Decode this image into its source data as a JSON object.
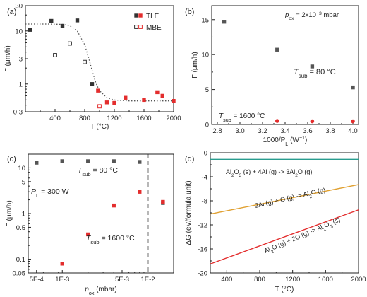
{
  "chart_data": [
    {
      "panel": "(a)",
      "type": "scatter",
      "xlabel": "T (°C)",
      "ylabel": "Γ (μm/h)",
      "xlim": [
        0,
        2000
      ],
      "ylim": [
        0.3,
        30
      ],
      "yscale": "log",
      "xticks": [
        "400",
        "800",
        "1200",
        "1600",
        "2000"
      ],
      "yticks": [
        "0.3",
        "1",
        "3",
        "10",
        "30"
      ],
      "legend_position": "top-right",
      "series": [
        {
          "name": "TLE",
          "marker": "filled-square",
          "color_low": "#333333",
          "color_high": "#e32d2d",
          "x": [
            60,
            350,
            500,
            700,
            900,
            980,
            1100,
            1200,
            1350,
            1600,
            1780,
            1850,
            2000
          ],
          "y": [
            10.5,
            15.5,
            12.5,
            15.8,
            1.0,
            0.75,
            0.45,
            0.44,
            0.55,
            0.5,
            0.7,
            0.6,
            0.48
          ]
        },
        {
          "name": "MBE",
          "marker": "open-square",
          "color_low": "#333333",
          "color_high": "#e32d2d",
          "x": [
            400,
            600,
            800,
            1000
          ],
          "y": [
            3.5,
            5.8,
            2.6,
            0.38
          ]
        }
      ],
      "fit_curve": {
        "style": "dotted",
        "color": "#555555",
        "x": [
          0,
          300,
          500,
          600,
          700,
          800,
          850,
          900,
          950,
          1000,
          1100,
          1200,
          1400,
          1700,
          2000
        ],
        "y": [
          13.5,
          13.5,
          13.3,
          12.5,
          10,
          5.5,
          3.2,
          1.8,
          1.05,
          0.75,
          0.55,
          0.5,
          0.48,
          0.48,
          0.48
        ]
      }
    },
    {
      "panel": "(b)",
      "type": "scatter",
      "xlabel": "1000/P",
      "xlabel_sub": "L",
      "xlabel_unit": " (W",
      "xlabel_sup": "−1",
      "xlabel_end": ")",
      "ylabel": "Γ (μm/h)",
      "xlim": [
        2.75,
        4.05
      ],
      "ylim": [
        0,
        17
      ],
      "xticks": [
        "2.8",
        "3.0",
        "3.2",
        "3.4",
        "3.6",
        "3.8",
        "4.0"
      ],
      "yticks": [
        "0",
        "5",
        "10",
        "15"
      ],
      "annotation_pressure": {
        "text_pre": "p",
        "sub": "ox",
        "text_post": " = 2x10",
        "sup": "−3",
        "text_end": " mbar"
      },
      "annotation_black": {
        "text_pre": "T",
        "sub": "sub",
        "text_post": " = 80 °C",
        "color": "#222222"
      },
      "annotation_red": {
        "text_pre": "T",
        "sub": "sub",
        "text_post": " = 1600 °C",
        "color": "#e32d2d"
      },
      "series": [
        {
          "name": "T_sub = 80 °C",
          "color": "#555555",
          "marker": "square",
          "x": [
            2.86,
            3.33,
            3.64,
            4.0
          ],
          "y": [
            14.7,
            10.7,
            8.3,
            5.3
          ]
        },
        {
          "name": "T_sub = 1600 °C",
          "color": "#e32d2d",
          "marker": "circle",
          "x": [
            3.33,
            3.64,
            4.0
          ],
          "y": [
            0.5,
            0.45,
            0.45
          ]
        }
      ]
    },
    {
      "panel": "(c)",
      "type": "scatter",
      "xlabel": "p",
      "xlabel_sub": "ox",
      "xlabel_unit": " (mbar)",
      "ylabel": "Γ (μm/h)",
      "xscale": "log",
      "yscale": "log",
      "xlim": [
        0.0004,
        0.02
      ],
      "ylim": [
        0.05,
        20
      ],
      "xticks": [
        "5E-4",
        "1E-3",
        "5E-3",
        "1E-2"
      ],
      "yticks": [
        "0.05",
        "0.1",
        "0.5",
        "1",
        "5",
        "10"
      ],
      "annotation_power": {
        "text_pre": "P",
        "sub": "L",
        "text_post": " = 300 W"
      },
      "annotation_black": {
        "text_pre": "T",
        "sub": "sub",
        "text_post": " = 80 °C",
        "color": "#222222"
      },
      "annotation_red": {
        "text_pre": "T",
        "sub": "sub",
        "text_post": " = 1600 °C",
        "color": "#e32d2d"
      },
      "vline": {
        "x": 0.01,
        "style": "dashed"
      },
      "series": [
        {
          "name": "T_sub = 80 °C",
          "color": "#555555",
          "marker": "square",
          "x": [
            0.0005,
            0.001,
            0.002,
            0.004,
            0.008,
            0.015
          ],
          "y": [
            13,
            14,
            14,
            14,
            13.5,
            1.7
          ]
        },
        {
          "name": "T_sub = 1600 °C",
          "color": "#e32d2d",
          "marker": "square",
          "x": [
            0.001,
            0.002,
            0.004,
            0.008,
            0.015
          ],
          "y": [
            0.08,
            0.35,
            1.5,
            3,
            1.8
          ]
        }
      ]
    },
    {
      "panel": "(d)",
      "type": "line",
      "xlabel": "T (°C)",
      "ylabel": "ΔG (eV/formula unit)",
      "xlim": [
        200,
        2000
      ],
      "ylim": [
        -20,
        0
      ],
      "xticks": [
        "400",
        "800",
        "1200",
        "1600",
        "2000"
      ],
      "yticks": [
        "0",
        "-4",
        "-8",
        "-12",
        "-16",
        "-20"
      ],
      "series": [
        {
          "name": "Al2O3 (s) + 4Al (g) -> 3Al2O (g)",
          "color": "#2a9d8f",
          "label_parts": [
            "Al",
            "2",
            "O",
            "3",
            " (s) + 4Al (g) -> 3Al",
            "2",
            "O (g)"
          ],
          "x": [
            200,
            2000
          ],
          "y": [
            -1.1,
            -1.1
          ]
        },
        {
          "name": "2Al (g) + O (g) -> Al2O (g)",
          "color": "#e0a030",
          "label_parts": [
            "2Al (g) + O (g) -> Al",
            "2",
            "O (g)"
          ],
          "x": [
            200,
            2000
          ],
          "y": [
            -10.2,
            -5.3
          ]
        },
        {
          "name": "Al2O (g) + 2O (g) -> Al2O3 (s)",
          "color": "#e32d2d",
          "label_parts": [
            "Al",
            "2",
            "O (g) + 2O (g) -> Al",
            "2",
            "O",
            "3",
            " (s)"
          ],
          "x": [
            200,
            2000
          ],
          "y": [
            -18.5,
            -9.5
          ]
        }
      ]
    }
  ]
}
